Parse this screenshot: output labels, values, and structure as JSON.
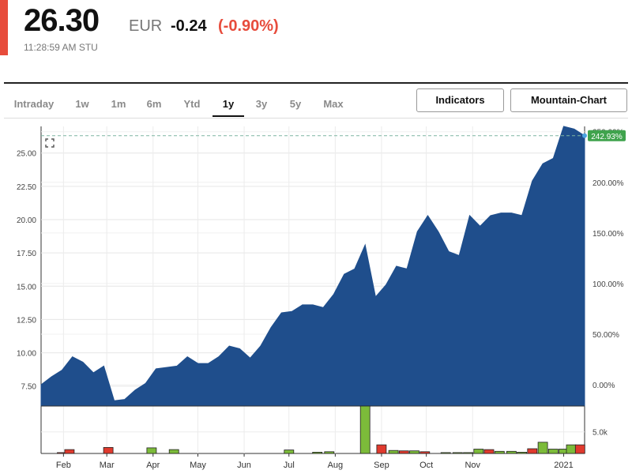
{
  "quote": {
    "price": "26.30",
    "currency": "EUR",
    "change": "-0.24",
    "change_pct": "(-0.90%)",
    "timestamp": "11:28:59 AM STU"
  },
  "tabs": [
    {
      "label": "Intraday",
      "active": false
    },
    {
      "label": "1w",
      "active": false
    },
    {
      "label": "1m",
      "active": false
    },
    {
      "label": "6m",
      "active": false
    },
    {
      "label": "Ytd",
      "active": false
    },
    {
      "label": "1y",
      "active": true
    },
    {
      "label": "3y",
      "active": false
    },
    {
      "label": "5y",
      "active": false
    },
    {
      "label": "Max",
      "active": false
    }
  ],
  "buttons": {
    "indicators": "Indicators",
    "chart_type": "Mountain-Chart"
  },
  "colors": {
    "area_fill": "#1f4e8c",
    "up_bar": "#7cbb3a",
    "down_bar": "#e03a2e",
    "last_badge": "#3fa34d",
    "negative": "#e74c3c"
  },
  "chart_data": {
    "type": "area",
    "title": "",
    "xlabel": "",
    "ylabel": "",
    "x_ticks": [
      "Feb",
      "Mar",
      "Apr",
      "May",
      "Jun",
      "Jul",
      "Aug",
      "Sep",
      "Oct",
      "Nov",
      "2021"
    ],
    "y_ticks": [
      "7.50",
      "10.00",
      "12.50",
      "15.00",
      "17.50",
      "20.00",
      "22.50",
      "25.00"
    ],
    "y_ticks_right": [
      "0.00%",
      "50.00%",
      "100.00%",
      "150.00%",
      "200.00%",
      "250.00%"
    ],
    "ylim": [
      6.0,
      27.0
    ],
    "last_value": 26.3,
    "last_pct_label": "242.93%",
    "volume_tick": "5.0k",
    "x": [
      "2020-01-17",
      "2020-01-24",
      "2020-01-31",
      "2020-02-07",
      "2020-02-14",
      "2020-02-21",
      "2020-02-28",
      "2020-03-06",
      "2020-03-13",
      "2020-03-20",
      "2020-03-27",
      "2020-04-03",
      "2020-04-10",
      "2020-04-17",
      "2020-04-24",
      "2020-05-01",
      "2020-05-08",
      "2020-05-15",
      "2020-05-22",
      "2020-05-29",
      "2020-06-05",
      "2020-06-12",
      "2020-06-19",
      "2020-06-26",
      "2020-07-03",
      "2020-07-10",
      "2020-07-17",
      "2020-07-24",
      "2020-07-31",
      "2020-08-07",
      "2020-08-14",
      "2020-08-21",
      "2020-08-28",
      "2020-09-04",
      "2020-09-11",
      "2020-09-18",
      "2020-09-25",
      "2020-10-02",
      "2020-10-09",
      "2020-10-16",
      "2020-10-23",
      "2020-10-30",
      "2020-11-06",
      "2020-11-13",
      "2020-11-20",
      "2020-11-27",
      "2020-12-04",
      "2020-12-11",
      "2020-12-18",
      "2020-12-25",
      "2021-01-01",
      "2021-01-08",
      "2021-01-15"
    ],
    "values": [
      7.6,
      8.2,
      8.7,
      9.7,
      9.3,
      8.5,
      9.0,
      6.4,
      6.5,
      7.2,
      7.7,
      8.8,
      8.9,
      9.0,
      9.7,
      9.2,
      9.2,
      9.7,
      10.5,
      10.3,
      9.6,
      10.5,
      11.9,
      13.0,
      13.1,
      13.6,
      13.6,
      13.4,
      14.4,
      15.9,
      16.3,
      18.1,
      14.2,
      15.1,
      16.5,
      16.3,
      19.1,
      20.3,
      19.1,
      17.6,
      17.3,
      20.3,
      19.5,
      20.3,
      20.5,
      20.5,
      20.3,
      22.9,
      24.2,
      24.6,
      27.0,
      26.8,
      26.3
    ],
    "volume": [
      {
        "x": "2020-01-31",
        "v": 0.2,
        "dir": "down"
      },
      {
        "x": "2020-02-05",
        "v": 0.9,
        "dir": "down"
      },
      {
        "x": "2020-03-02",
        "v": 1.4,
        "dir": "down"
      },
      {
        "x": "2020-03-31",
        "v": 1.3,
        "dir": "up"
      },
      {
        "x": "2020-04-15",
        "v": 0.9,
        "dir": "up"
      },
      {
        "x": "2020-07-01",
        "v": 0.8,
        "dir": "up"
      },
      {
        "x": "2020-07-20",
        "v": 0.3,
        "dir": "up"
      },
      {
        "x": "2020-07-28",
        "v": 0.4,
        "dir": "up"
      },
      {
        "x": "2020-08-21",
        "v": 11.0,
        "dir": "up"
      },
      {
        "x": "2020-09-01",
        "v": 2.0,
        "dir": "down"
      },
      {
        "x": "2020-09-09",
        "v": 0.7,
        "dir": "up"
      },
      {
        "x": "2020-09-16",
        "v": 0.6,
        "dir": "down"
      },
      {
        "x": "2020-09-23",
        "v": 0.6,
        "dir": "up"
      },
      {
        "x": "2020-09-30",
        "v": 0.4,
        "dir": "down"
      },
      {
        "x": "2020-10-14",
        "v": 0.2,
        "dir": "up"
      },
      {
        "x": "2020-10-22",
        "v": 0.2,
        "dir": "up"
      },
      {
        "x": "2020-10-29",
        "v": 0.2,
        "dir": "up"
      },
      {
        "x": "2020-11-05",
        "v": 1.0,
        "dir": "up"
      },
      {
        "x": "2020-11-12",
        "v": 0.9,
        "dir": "down"
      },
      {
        "x": "2020-11-19",
        "v": 0.5,
        "dir": "up"
      },
      {
        "x": "2020-11-27",
        "v": 0.5,
        "dir": "up"
      },
      {
        "x": "2020-12-04",
        "v": 0.3,
        "dir": "up"
      },
      {
        "x": "2020-12-11",
        "v": 1.1,
        "dir": "down"
      },
      {
        "x": "2020-12-18",
        "v": 2.6,
        "dir": "up"
      },
      {
        "x": "2020-12-25",
        "v": 1.0,
        "dir": "up"
      },
      {
        "x": "2021-01-01",
        "v": 1.0,
        "dir": "up"
      },
      {
        "x": "2021-01-06",
        "v": 2.0,
        "dir": "up"
      },
      {
        "x": "2021-01-12",
        "v": 2.0,
        "dir": "down"
      }
    ],
    "grid": true,
    "legend": "none"
  }
}
